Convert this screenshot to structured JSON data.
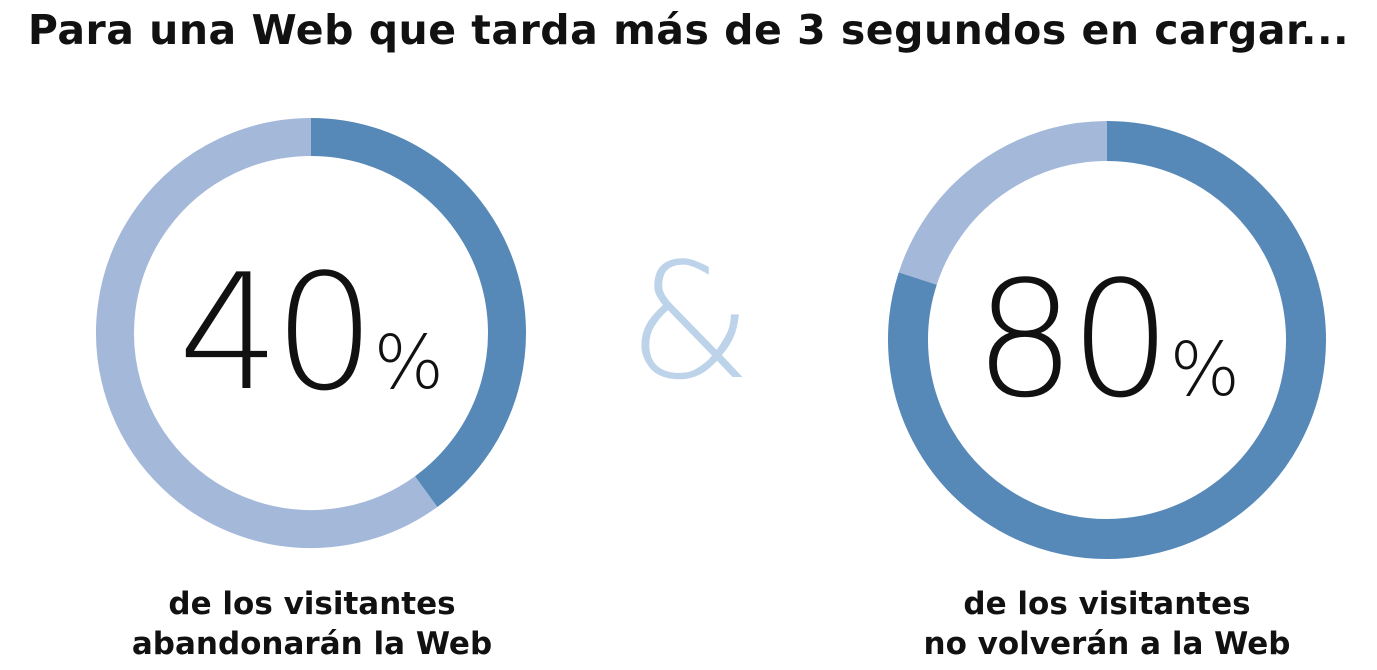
{
  "title": "Para una Web que tarda más de 3 segundos en cargar...",
  "separator": "&",
  "colors": {
    "filled": "#5688b8",
    "track": "#a4b8da",
    "ampersand": "#bdd3ea",
    "text": "#111111"
  },
  "chart_data": [
    {
      "type": "pie",
      "variant": "donut",
      "value_label": "40",
      "value_unit": "%",
      "values": [
        40,
        60
      ],
      "caption_lines": [
        "de los visitantes",
        "abandonarán la Web"
      ]
    },
    {
      "type": "pie",
      "variant": "donut",
      "value_label": "80",
      "value_unit": "%",
      "values": [
        80,
        20
      ],
      "caption_lines": [
        "de los visitantes",
        "no volverán a la Web"
      ]
    }
  ]
}
